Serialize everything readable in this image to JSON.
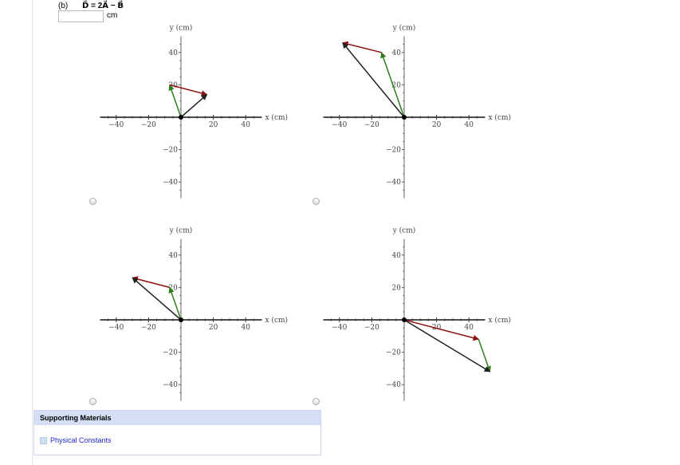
{
  "question": {
    "part": "(b)",
    "formula": "D⃗ = 2A⃗ − B⃗",
    "answer_value": "",
    "unit": "cm"
  },
  "axis_labels": {
    "x": "x (cm)",
    "y": "y (cm)"
  },
  "colors": {
    "A": "#2e7d1e",
    "B": "#8b1010",
    "D": "#222222"
  },
  "chart_data": [
    {
      "type": "vector",
      "xlim": [
        -50,
        50
      ],
      "ylim": [
        -50,
        50
      ],
      "xticks": [
        -40,
        -20,
        20,
        40
      ],
      "yticks": [
        40,
        20,
        -20,
        -40
      ],
      "vectors": [
        {
          "color": "green",
          "from": [
            0,
            0
          ],
          "to": [
            -7,
            20
          ]
        },
        {
          "color": "red",
          "from": [
            -7,
            20
          ],
          "to": [
            16,
            14
          ]
        },
        {
          "color": "black",
          "from": [
            0,
            0
          ],
          "to": [
            16,
            14
          ]
        }
      ]
    },
    {
      "type": "vector",
      "xlim": [
        -50,
        50
      ],
      "ylim": [
        -50,
        50
      ],
      "xticks": [
        -40,
        -20,
        20,
        40
      ],
      "yticks": [
        40,
        20,
        -20,
        -40
      ],
      "vectors": [
        {
          "color": "green",
          "from": [
            0,
            0
          ],
          "to": [
            -14,
            40
          ]
        },
        {
          "color": "red",
          "from": [
            -14,
            40
          ],
          "to": [
            -38,
            46
          ]
        },
        {
          "color": "black",
          "from": [
            0,
            0
          ],
          "to": [
            -38,
            46
          ]
        }
      ]
    },
    {
      "type": "vector",
      "xlim": [
        -50,
        50
      ],
      "ylim": [
        -50,
        50
      ],
      "xticks": [
        -40,
        -20,
        20,
        40
      ],
      "yticks": [
        40,
        20,
        -20,
        -40
      ],
      "vectors": [
        {
          "color": "green",
          "from": [
            0,
            0
          ],
          "to": [
            -7,
            20
          ]
        },
        {
          "color": "red",
          "from": [
            -7,
            20
          ],
          "to": [
            -30,
            26
          ]
        },
        {
          "color": "black",
          "from": [
            0,
            0
          ],
          "to": [
            -30,
            26
          ]
        }
      ]
    },
    {
      "type": "vector",
      "xlim": [
        -50,
        50
      ],
      "ylim": [
        -50,
        50
      ],
      "xticks": [
        -40,
        -20,
        20,
        40
      ],
      "yticks": [
        40,
        20,
        -20,
        -40
      ],
      "vectors": [
        {
          "color": "red",
          "from": [
            0,
            0
          ],
          "to": [
            46,
            -12
          ]
        },
        {
          "color": "green",
          "from": [
            46,
            -12
          ],
          "to": [
            53,
            -32
          ]
        },
        {
          "color": "black",
          "from": [
            0,
            0
          ],
          "to": [
            53,
            -32
          ]
        }
      ]
    }
  ],
  "supporting": {
    "title": "Supporting Materials",
    "link": "Physical Constants"
  }
}
